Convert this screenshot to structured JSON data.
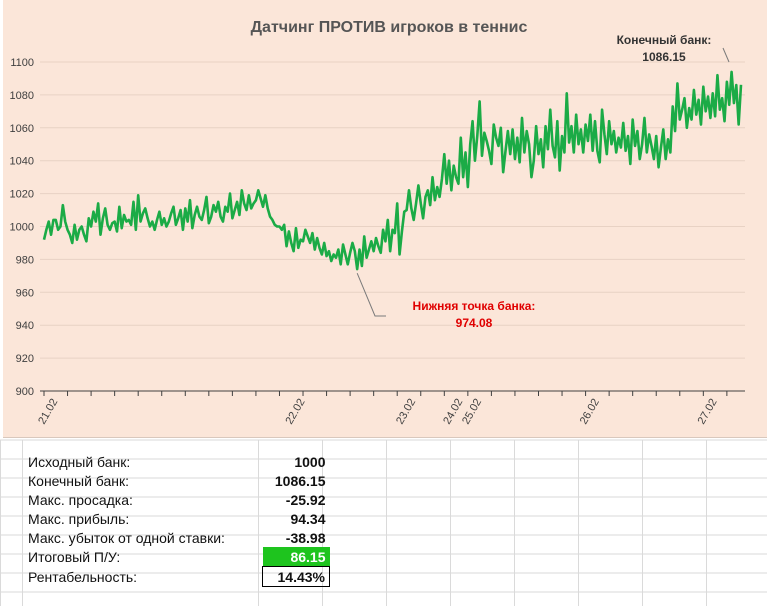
{
  "chart_data": {
    "type": "line",
    "title": "Датчинг ПРОТИВ игроков в теннис",
    "xlabel": "",
    "ylabel": "",
    "ylim": [
      900,
      1100
    ],
    "yticks": [
      900,
      920,
      940,
      960,
      980,
      1000,
      1020,
      1040,
      1060,
      1080,
      1100
    ],
    "grid": true,
    "legend": "none",
    "line_color": "#1bab46",
    "x_tick_labels": [
      {
        "label": "21.02",
        "index": 0
      },
      {
        "label": "22.02",
        "index": 105
      },
      {
        "label": "23.02",
        "index": 152
      },
      {
        "label": "24.02",
        "index": 172
      },
      {
        "label": "25.02",
        "index": 180
      },
      {
        "label": "26.02",
        "index": 230
      },
      {
        "label": "27.02",
        "index": 280
      }
    ],
    "annotations": [
      {
        "name": "min",
        "text_line1": "Нижняя точка банка:",
        "text_line2": "974.08",
        "color": "#e00000",
        "point_index": 133
      },
      {
        "name": "end",
        "text_line1": "Конечный банк:",
        "text_line2": "1086.15",
        "color": "#333333",
        "point_index": 299
      }
    ],
    "series": [
      {
        "values": [
          992,
          998,
          1003,
          995,
          1004,
          1004,
          998,
          1000,
          1013,
          1003,
          998,
          995,
          990,
          1001,
          992,
          998,
          1000,
          995,
          991,
          1005,
          1000,
          1009,
          1003,
          1014,
          995,
          1005,
          1011,
          1001,
          998,
          1002,
          1003,
          997,
          1012,
          999,
          1007,
          1003,
          1004,
          1001,
          1015,
          998,
          1019,
          1003,
          1008,
          1011,
          1005,
          1000,
          1003,
          998,
          1004,
          1009,
          1001,
          1005,
          1000,
          1003,
          1008,
          1012,
          1001,
          1005,
          1010,
          998,
          1011,
          1003,
          1016,
          999,
          1007,
          1012,
          1006,
          1004,
          1010,
          1018,
          1002,
          1006,
          1013,
          1009,
          1015,
          1006,
          1003,
          1012,
          1009,
          1020,
          1005,
          1010,
          1015,
          1007,
          1022,
          1014,
          1010,
          1019,
          1011,
          1014,
          1016,
          1022,
          1017,
          1012,
          1019,
          1011,
          1006,
          1004,
          1001,
          1000,
          1000,
          998,
          1001,
          988,
          997,
          990,
          985,
          999,
          987,
          992,
          991,
          998,
          994,
          990,
          996,
          986,
          993,
          987,
          983,
          990,
          982,
          985,
          979,
          983,
          981,
          986,
          977,
          989,
          983,
          977,
          984,
          990,
          985,
          974.08,
          986,
          976,
          994,
          981,
          986,
          991,
          985,
          993,
          988,
          984,
          998,
          991,
          1004,
          985,
          998,
          996,
          1014,
          983,
          997,
          1009,
          1010,
          1022,
          1011,
          1004,
          1014,
          1025,
          1014,
          1005,
          1018,
          1022,
          1013,
          1030,
          1016,
          1024,
          1018,
          1029,
          1044,
          1026,
          1040,
          1022,
          1037,
          1030,
          1026,
          1054,
          1030,
          1045,
          1024,
          1050,
          1064,
          1040,
          1055,
          1076,
          1043,
          1057,
          1052,
          1046,
          1038,
          1062,
          1054,
          1049,
          1060,
          1033,
          1046,
          1058,
          1044,
          1059,
          1041,
          1054,
          1039,
          1066,
          1045,
          1058,
          1050,
          1030,
          1040,
          1061,
          1044,
          1053,
          1036,
          1061,
          1047,
          1071,
          1049,
          1042,
          1064,
          1034,
          1055,
          1045,
          1081,
          1051,
          1061,
          1045,
          1068,
          1050,
          1059,
          1045,
          1062,
          1052,
          1068,
          1046,
          1064,
          1046,
          1039,
          1071,
          1056,
          1044,
          1064,
          1050,
          1058,
          1045,
          1054,
          1048,
          1063,
          1046,
          1055,
          1038,
          1065,
          1049,
          1058,
          1041,
          1050,
          1066,
          1045,
          1056,
          1049,
          1041,
          1055,
          1036,
          1048,
          1059,
          1041,
          1053,
          1045,
          1073,
          1058,
          1087,
          1065,
          1071,
          1078,
          1060,
          1072,
          1065,
          1083,
          1068,
          1077,
          1062,
          1085,
          1070,
          1079,
          1066,
          1081,
          1067,
          1092,
          1071,
          1078,
          1064,
          1088,
          1074,
          1094,
          1075,
          1086,
          1062,
          1086.15
        ]
      }
    ]
  },
  "stats": [
    {
      "label": "Исходный банк:",
      "value": "1000"
    },
    {
      "label": "Конечный банк:",
      "value": "1086.15"
    },
    {
      "label": "Макс. просадка:",
      "value": "-25.92"
    },
    {
      "label": "Макс. прибыль:",
      "value": "94.34"
    },
    {
      "label": "Макс. убыток от одной ставки:",
      "value": "-38.98"
    },
    {
      "label": "Итоговый П/У:",
      "value": "86.15",
      "highlight": "#1ec41e"
    },
    {
      "label": "Рентабельность:",
      "value": "14.43%"
    }
  ]
}
